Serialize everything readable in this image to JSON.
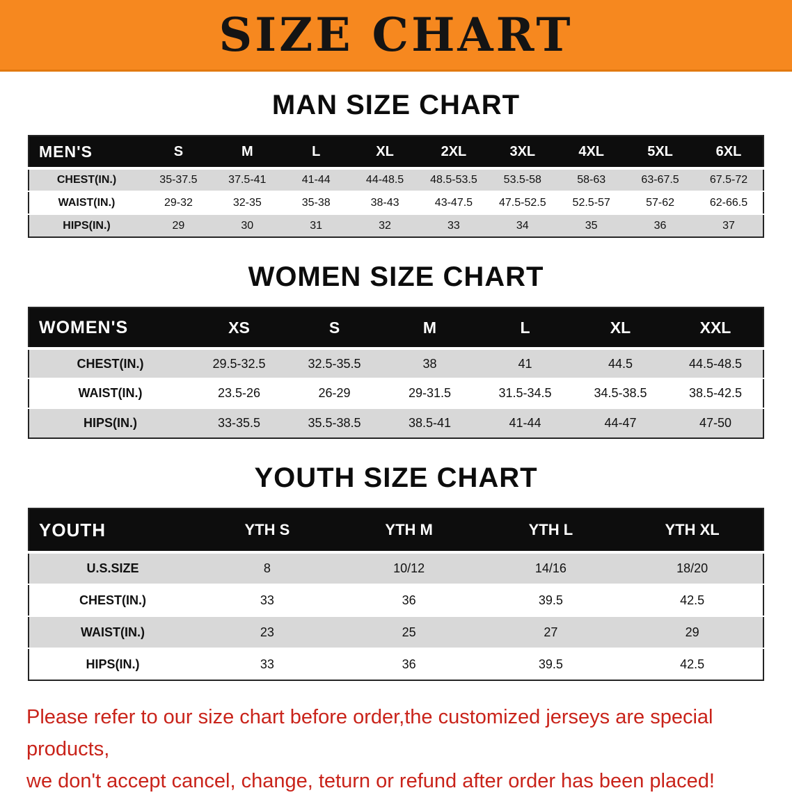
{
  "banner": {
    "title": "SIZE CHART"
  },
  "colors": {
    "banner_bg": "#f6881f",
    "table_header_bg": "#0d0d0d",
    "row_stripe": "#d8d8d8",
    "disclaimer_red": "#c9231a"
  },
  "sections": [
    {
      "heading": "MAN SIZE CHART",
      "table": {
        "corner": "MEN'S",
        "columns": [
          "S",
          "M",
          "L",
          "XL",
          "2XL",
          "3XL",
          "4XL",
          "5XL",
          "6XL"
        ],
        "rows": [
          {
            "label": "CHEST(IN.)",
            "values": [
              "35-37.5",
              "37.5-41",
              "41-44",
              "44-48.5",
              "48.5-53.5",
              "53.5-58",
              "58-63",
              "63-67.5",
              "67.5-72"
            ]
          },
          {
            "label": "WAIST(IN.)",
            "values": [
              "29-32",
              "32-35",
              "35-38",
              "38-43",
              "43-47.5",
              "47.5-52.5",
              "52.5-57",
              "57-62",
              "62-66.5"
            ]
          },
          {
            "label": "HIPS(IN.)",
            "values": [
              "29",
              "30",
              "31",
              "32",
              "33",
              "34",
              "35",
              "36",
              "37"
            ]
          }
        ]
      }
    },
    {
      "heading": "WOMEN SIZE CHART",
      "table": {
        "corner": "WOMEN'S",
        "columns": [
          "XS",
          "S",
          "M",
          "L",
          "XL",
          "XXL"
        ],
        "rows": [
          {
            "label": "CHEST(IN.)",
            "values": [
              "29.5-32.5",
              "32.5-35.5",
              "38",
              "41",
              "44.5",
              "44.5-48.5"
            ]
          },
          {
            "label": "WAIST(IN.)",
            "values": [
              "23.5-26",
              "26-29",
              "29-31.5",
              "31.5-34.5",
              "34.5-38.5",
              "38.5-42.5"
            ]
          },
          {
            "label": "HIPS(IN.)",
            "values": [
              "33-35.5",
              "35.5-38.5",
              "38.5-41",
              "41-44",
              "44-47",
              "47-50"
            ]
          }
        ]
      }
    },
    {
      "heading": "YOUTH SIZE CHART",
      "table": {
        "corner": "YOUTH",
        "columns": [
          "YTH S",
          "YTH M",
          "YTH L",
          "YTH XL"
        ],
        "rows": [
          {
            "label": "U.S.SIZE",
            "values": [
              "8",
              "10/12",
              "14/16",
              "18/20"
            ]
          },
          {
            "label": "CHEST(IN.)",
            "values": [
              "33",
              "36",
              "39.5",
              "42.5"
            ]
          },
          {
            "label": "WAIST(IN.)",
            "values": [
              "23",
              "25",
              "27",
              "29"
            ]
          },
          {
            "label": "HIPS(IN.)",
            "values": [
              "33",
              "36",
              "39.5",
              "42.5"
            ]
          }
        ]
      }
    }
  ],
  "disclaimer": {
    "line1": "Please refer to our size chart before order,the customized jerseys are special products,",
    "line2": "we don't accept cancel, change, teturn or refund after order has been placed!"
  }
}
